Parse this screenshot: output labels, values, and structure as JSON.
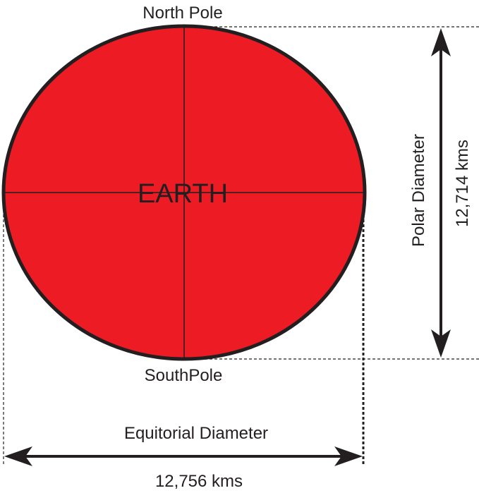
{
  "labels": {
    "north": "North Pole",
    "south": "SouthPole",
    "center": "EARTH",
    "polar_title": "Polar Diameter",
    "polar_value": "12,714 kms",
    "equatorial_title": "Equitorial Diameter",
    "equatorial_value": "12,756 kms"
  },
  "colors": {
    "earth_fill": "#ed1c24",
    "outline": "#231f20",
    "background": "#ffffff"
  }
}
